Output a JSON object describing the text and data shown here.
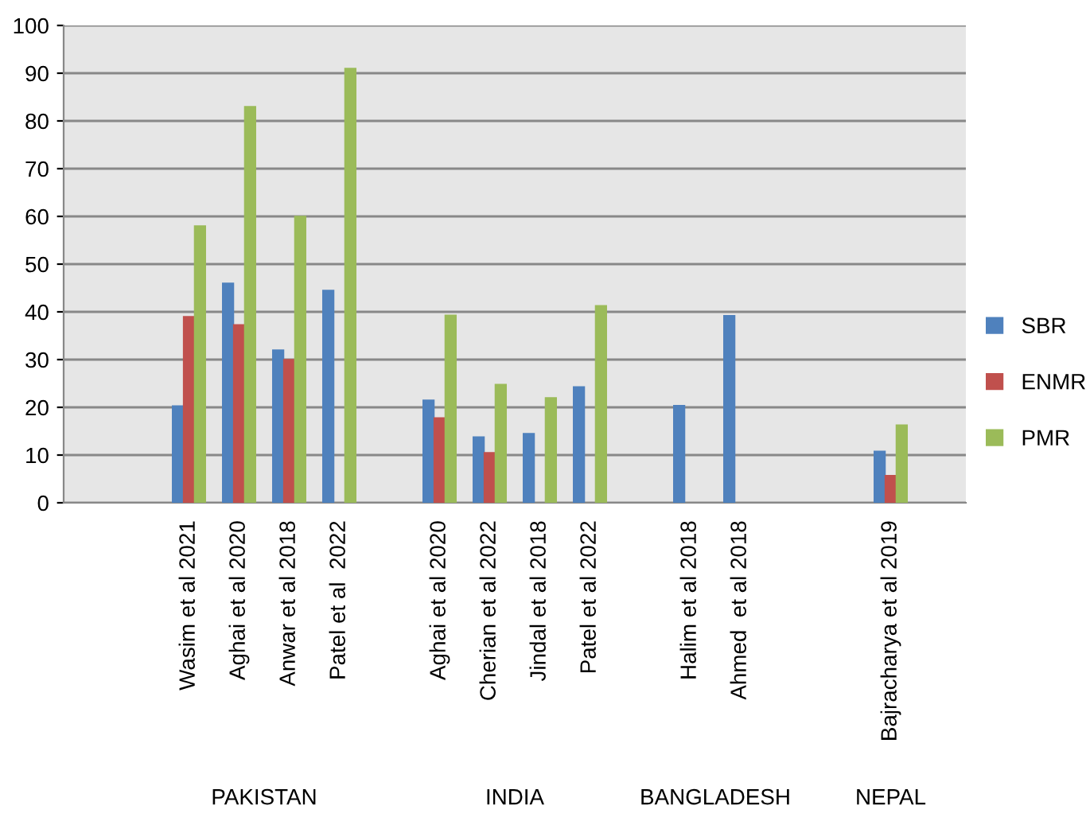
{
  "chart_data": {
    "type": "bar",
    "categories": [
      null,
      null,
      "Wasim et al 2021",
      "Aghai et al 2020",
      "Anwar et al 2018",
      "Patel et al  2022",
      null,
      "Aghai et al 2020",
      "Cherian et al 2022",
      "Jindal et al 2018",
      "Patel et al 2022",
      null,
      "Halim et al 2018",
      "Ahmed  et al 2018",
      null,
      null,
      "Bajracharya et al 2019",
      null
    ],
    "series": [
      {
        "name": "SBR",
        "color": "#4f81bd",
        "values": [
          null,
          null,
          20.3,
          46,
          32,
          44.5,
          null,
          21.5,
          13.8,
          14.5,
          24.3,
          null,
          20.4,
          39.2,
          null,
          null,
          10.8,
          null
        ]
      },
      {
        "name": "ENMR",
        "color": "#c0504d",
        "values": [
          null,
          null,
          39,
          37.3,
          30,
          null,
          null,
          17.8,
          10.5,
          null,
          null,
          null,
          null,
          null,
          null,
          null,
          5.7,
          null
        ]
      },
      {
        "name": "PMR",
        "color": "#9bbb59",
        "values": [
          null,
          null,
          58,
          83,
          60,
          91,
          null,
          39.3,
          24.8,
          22,
          41.3,
          null,
          null,
          null,
          null,
          null,
          16.3,
          null
        ]
      }
    ],
    "annotations": [
      "PAKISTAN",
      "INDIA",
      "BANGLADESH",
      "NEPAL"
    ],
    "ylim": [
      0,
      100
    ],
    "yticks": [
      0,
      10,
      20,
      30,
      40,
      50,
      60,
      70,
      80,
      90,
      100
    ],
    "grid": "y",
    "legend": "right"
  }
}
